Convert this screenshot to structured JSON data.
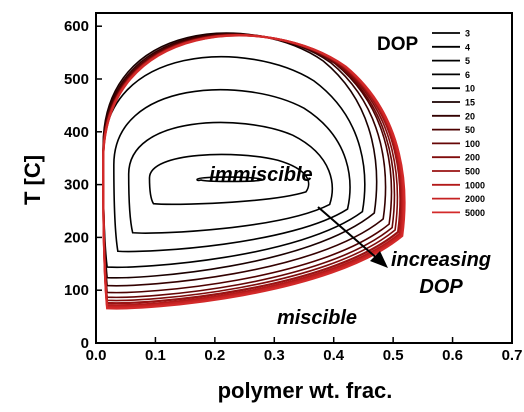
{
  "chart_data": {
    "type": "line",
    "xlabel": "polymer wt. frac.",
    "ylabel": "T [C]",
    "xlim": [
      0,
      0.7
    ],
    "ylim": [
      0,
      625
    ],
    "x_ticks": [
      "0.0",
      "0.1",
      "0.2",
      "0.3",
      "0.4",
      "0.5",
      "0.6",
      "0.7"
    ],
    "y_ticks": [
      "0",
      "100",
      "200",
      "300",
      "400",
      "500",
      "600"
    ],
    "legend": {
      "title": "DOP",
      "placement": "top-right"
    },
    "annotations": {
      "immiscible": "immiscible",
      "miscible": "miscible",
      "increasing_line1": "increasing",
      "increasing_line2": "DOP"
    },
    "series": [
      {
        "name": "3",
        "color": "#000000",
        "bottom": 305,
        "top": 315,
        "x_right": 0.28
      },
      {
        "name": "4",
        "color": "#000000",
        "bottom": 260,
        "top": 365,
        "x_right": 0.36
      },
      {
        "name": "5",
        "color": "#000000",
        "bottom": 205,
        "top": 435,
        "x_right": 0.4
      },
      {
        "name": "6",
        "color": "#000000",
        "bottom": 170,
        "top": 505,
        "x_right": 0.43
      },
      {
        "name": "10",
        "color": "#000000",
        "bottom": 140,
        "top": 575,
        "x_right": 0.455
      },
      {
        "name": "15",
        "color": "#1a0000",
        "bottom": 120,
        "top": 625,
        "x_right": 0.475
      },
      {
        "name": "20",
        "color": "#330000",
        "bottom": 105,
        "top": 625,
        "x_right": 0.49
      },
      {
        "name": "50",
        "color": "#4d0000",
        "bottom": 92,
        "top": 625,
        "x_right": 0.5
      },
      {
        "name": "100",
        "color": "#660606",
        "bottom": 83,
        "top": 625,
        "x_right": 0.505
      },
      {
        "name": "200",
        "color": "#800c0c",
        "bottom": 77,
        "top": 625,
        "x_right": 0.51
      },
      {
        "name": "500",
        "color": "#991313",
        "bottom": 72,
        "top": 625,
        "x_right": 0.515
      },
      {
        "name": "1000",
        "color": "#b31a1a",
        "bottom": 68,
        "top": 625,
        "x_right": 0.518
      },
      {
        "name": "2000",
        "color": "#c62222",
        "bottom": 65,
        "top": 625,
        "x_right": 0.52
      },
      {
        "name": "5000",
        "color": "#d32a2a",
        "bottom": 62,
        "top": 625,
        "x_right": 0.522
      }
    ]
  }
}
